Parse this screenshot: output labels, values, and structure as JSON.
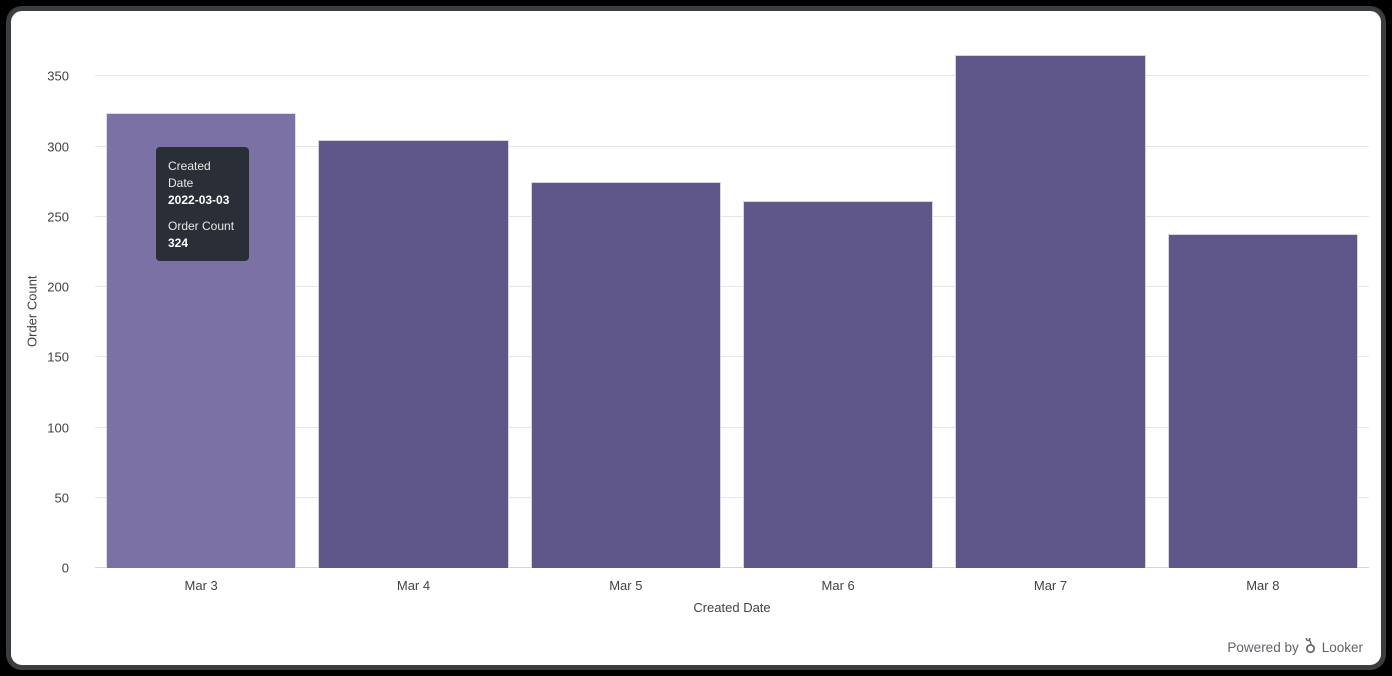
{
  "frame": {
    "background_color": "#000000",
    "card_border_color": "#3a3e41",
    "card_background_color": "#ffffff"
  },
  "chart_data": {
    "type": "bar",
    "title": "",
    "categories": [
      "Mar 3",
      "Mar 4",
      "Mar 5",
      "Mar 6",
      "Mar 7",
      "Mar 8"
    ],
    "values": [
      324,
      305,
      275,
      261,
      365,
      238
    ],
    "xlabel": "Created Date",
    "ylabel": "Order Count",
    "ylim": [
      0,
      350
    ],
    "ytick_step": 50,
    "yticks": [
      0,
      50,
      100,
      150,
      200,
      250,
      300,
      350
    ],
    "grid": true,
    "legend_position": "none",
    "hover_index": 0,
    "bar_color": "#5f568a",
    "bar_hover_color": "#7b71a5",
    "gridline_color": "#e6e6e6",
    "baseline_color": "#ccd6eb",
    "tick_label_color": "#424242"
  },
  "tooltip": {
    "background_color": "#262c31",
    "title_label": "Created Date",
    "title_value": "2022-03-03",
    "metric_label": "Order Count",
    "metric_value": "324"
  },
  "footer": {
    "powered_by": "Powered by",
    "brand": "Looker",
    "text_color": "#5f6368"
  }
}
